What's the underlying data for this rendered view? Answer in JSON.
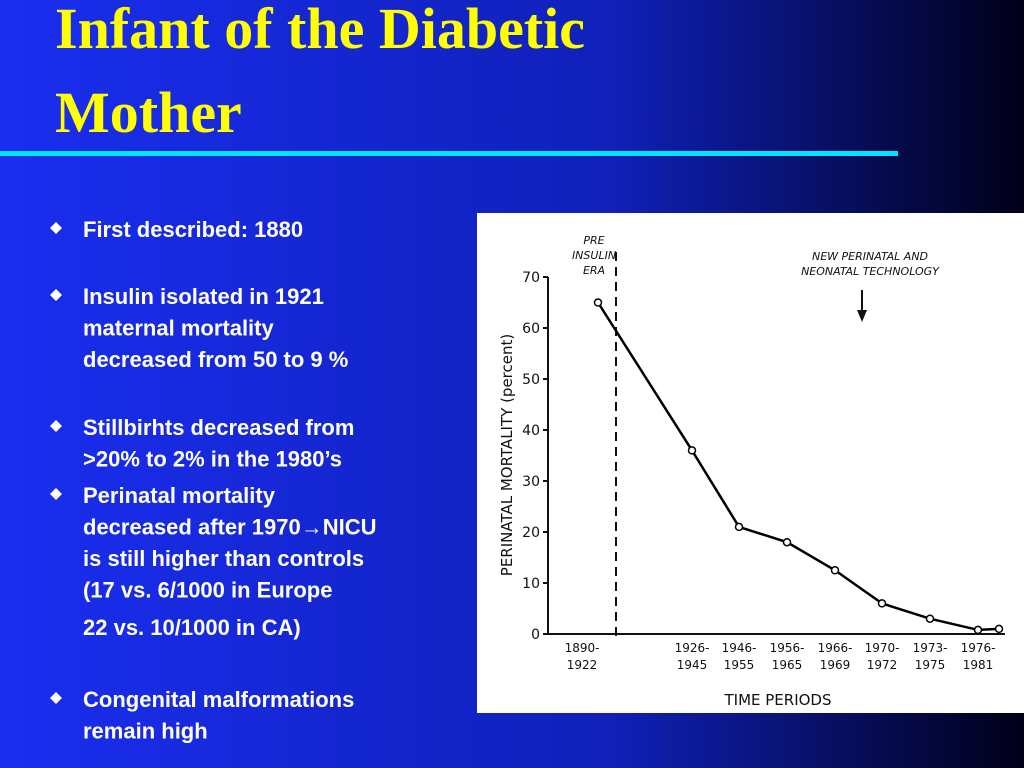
{
  "title": [
    "Infant of the Diabetic",
    "Mother"
  ],
  "bullets": [
    {
      "lines": [
        " First described: 1880"
      ]
    },
    {
      "lines": [
        "Insulin isolated in 1921",
        "maternal mortality",
        "decreased from  50 to 9 %"
      ]
    },
    {
      "lines": [
        "Stillbirhts decreased from",
        ">20% to 2% in the 1980’s"
      ]
    },
    {
      "lines": [
        "Perinatal mortality",
        "decreased after 1970→NICU",
        "is still higher than controls",
        "(17 vs. 6/1000 in Europe"
      ]
    },
    {
      "lines": [
        " 22 vs. 10/1000 in CA)"
      ],
      "plain": true
    },
    {
      "lines": [
        "Congenital malformations",
        "remain high"
      ]
    }
  ],
  "chart_data": {
    "type": "line",
    "categories": [
      "1890-1922",
      "1926-1945",
      "1946-1955",
      "1956-1965",
      "1966-1969",
      "1970-1972",
      "1973-1975",
      "1976-1981",
      null
    ],
    "values": [
      65,
      36,
      21,
      18,
      12.5,
      6,
      3,
      0.8,
      1
    ],
    "color": "#000000",
    "ylim": [
      0,
      70
    ],
    "yticks": [
      0,
      10,
      20,
      30,
      40,
      50,
      60,
      70
    ],
    "ylabel": "PERINATAL MORTALITY (percent)",
    "xlabel": "TIME PERIODS",
    "annotations": [
      "PRE INSULIN ERA",
      "NEW PERINATAL AND NEONATAL TECHNOLOGY"
    ]
  }
}
